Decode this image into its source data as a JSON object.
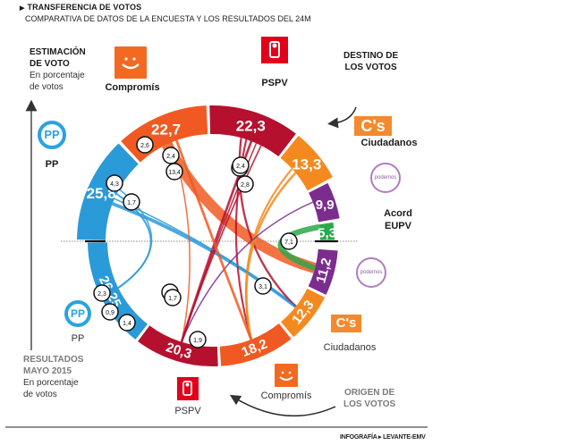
{
  "header": {
    "title": "TRANSFERENCIA DE VOTOS",
    "subtitle": "COMPARATIVA DE DATOS DE LA ENCUESTA Y LOS RESULTADOS DEL 24M"
  },
  "labels": {
    "estimacion_l1": "ESTIMACIÓN",
    "estimacion_l2": "DE VOTO",
    "estimacion_l3": "En porcentaje",
    "estimacion_l4": "de votos",
    "resultados_l1": "RESULTADOS",
    "resultados_l2": "MAYO 2015",
    "resultados_l3": "En porcentaje",
    "resultados_l4": "de votos",
    "destino_l1": "DESTINO DE",
    "destino_l2": "LOS VOTOS",
    "origen_l1": "ORIGEN DE",
    "origen_l2": "LOS VOTOS",
    "credit": "INFOGRAFÍA ▸ LEVANTE-EMV"
  },
  "parties": {
    "pp": "PP",
    "compromis": "Compromís",
    "pspv": "PSPV",
    "cs": "Ciudadanos",
    "cs_logo": "C's",
    "podemos_logo": "podemos",
    "eupv_l1": "Acord",
    "eupv_l2": "EUPV",
    "pp_logo": "PP"
  },
  "colors": {
    "pp": "#2b9ad8",
    "compromis": "#f05a22",
    "pspv": "#b5112e",
    "cs": "#f48a1f",
    "podemos": "#7b2d8e",
    "eupv": "#2aa84a",
    "abst": "#4d6b6e"
  },
  "chart_data": {
    "type": "chord",
    "title": "TRANSFERENCIA DE VOTOS",
    "subtitle": "COMPARATIVA DE DATOS DE LA ENCUESTA Y LOS RESULTADOS DEL 24M",
    "top_series_name": "Estimación de voto (%)",
    "bottom_series_name": "Resultados mayo 2015 (%)",
    "estimacion": [
      {
        "party": "PP",
        "value": 25.8,
        "label": "25,8"
      },
      {
        "party": "Compromís",
        "value": 22.7,
        "label": "22,7"
      },
      {
        "party": "PSPV",
        "value": 22.3,
        "label": "22,3"
      },
      {
        "party": "Ciudadanos",
        "value": 13.3,
        "label": "13,3"
      },
      {
        "party": "Podemos",
        "value": 9.9,
        "label": "9,9"
      },
      {
        "party": "Acord EUPV",
        "value": 5.3,
        "label": "5,3"
      }
    ],
    "resultados": [
      {
        "party": "PP",
        "value": 26.25,
        "label": "26,25"
      },
      {
        "party": "PSPV",
        "value": 20.3,
        "label": "20,3"
      },
      {
        "party": "Compromís",
        "value": 18.2,
        "label": "18,2"
      },
      {
        "party": "Ciudadanos",
        "value": 12.3,
        "label": "12,3"
      },
      {
        "party": "Podemos",
        "value": 11.2,
        "label": "11,2"
      }
    ],
    "flows": [
      {
        "from": "PP",
        "to": "Ciudadanos",
        "value": 4.3,
        "label": "4,3"
      },
      {
        "from": "Compromís",
        "to": "Podemos",
        "value": 13.4,
        "label": "13,4"
      },
      {
        "from": "Compromís",
        "to": "PSPV",
        "value": 1.7,
        "label": "1,7"
      },
      {
        "from": "PSPV",
        "to": "Ciudadanos",
        "value": 2.6,
        "label": "2,6"
      },
      {
        "from": "PSPV",
        "to": "Compromís",
        "value": 2.4,
        "label": "2,4"
      },
      {
        "from": "PSPV",
        "to": "PSPV",
        "value": 3,
        "label": "3"
      },
      {
        "from": "Ciudadanos",
        "to": "Compromís",
        "value": 2.4,
        "label": "2,4"
      },
      {
        "from": "Ciudadanos",
        "to": "Compromís",
        "value": 2.8,
        "label": "2,8"
      },
      {
        "from": "PP",
        "to": "Ciudadanos",
        "value": 1.7,
        "label": "1,7"
      },
      {
        "from": "PP",
        "to": "PP",
        "value": 2.3,
        "label": "2,3"
      },
      {
        "from": "PSPV",
        "to": "PSPV",
        "value": 1.7,
        "label": "1,7"
      },
      {
        "from": "PP",
        "to": "PP",
        "value": 0.9,
        "label": "0,9"
      },
      {
        "from": "Podemos",
        "to": "PSPV",
        "value": 1.4,
        "label": "1,4"
      },
      {
        "from": "PSPV",
        "to": "PSPV",
        "value": 1.9,
        "label": "1,9"
      },
      {
        "from": "Compromís",
        "to": "Compromís",
        "value": 3.1,
        "label": "3,1"
      },
      {
        "from": "Acord EUPV",
        "to": "Podemos",
        "value": 7.1,
        "label": "7,1"
      }
    ]
  }
}
